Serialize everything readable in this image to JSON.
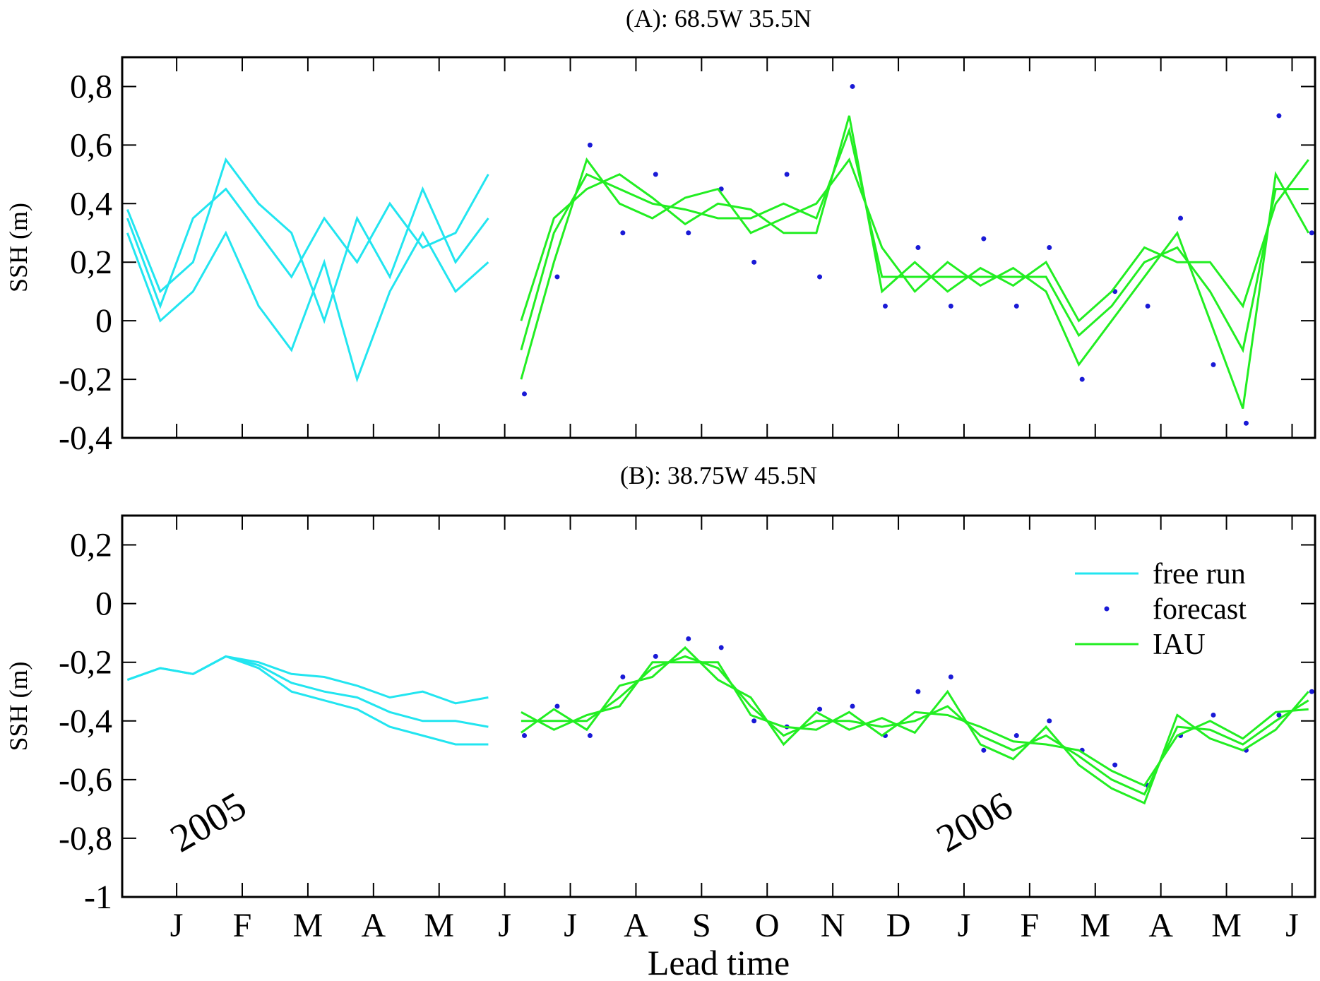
{
  "chart_data": [
    {
      "type": "line",
      "title": "(A): 68.5W 35.5N",
      "ylabel": "SSH (m)",
      "xlim": [
        0.17,
        18.35
      ],
      "ylim": [
        -0.4,
        0.9
      ],
      "yticks": [
        {
          "value": -0.4,
          "label": "-0,4"
        },
        {
          "value": -0.2,
          "label": "-0,2"
        },
        0,
        {
          "value": 0.2,
          "label": "0,2"
        },
        {
          "value": 0.4,
          "label": "0,4"
        },
        {
          "value": 0.6,
          "label": "0,6"
        },
        {
          "value": 0.8,
          "label": "0,8"
        }
      ],
      "series": [
        {
          "style": "line",
          "color": "#22e5f0",
          "x": [
            0.25,
            0.75,
            1.25,
            1.75,
            2.25,
            2.75,
            3.25,
            3.75,
            4.25,
            4.75,
            5.25,
            5.75
          ],
          "values": [
            [
              0.35,
              0.05,
              0.35,
              0.45,
              0.3,
              0.15,
              0.35,
              0.2,
              0.4,
              0.25,
              0.3,
              0.5
            ],
            [
              0.3,
              0.0,
              0.1,
              0.3,
              0.05,
              -0.1,
              0.2,
              -0.2,
              0.1,
              0.3,
              0.1,
              0.2
            ],
            [
              0.38,
              0.1,
              0.2,
              0.55,
              0.4,
              0.3,
              0.0,
              0.35,
              0.15,
              0.45,
              0.2,
              0.35
            ]
          ]
        },
        {
          "style": "dots",
          "color": "#1a1ad6",
          "x": [
            6.3,
            6.8,
            7.3,
            7.8,
            8.3,
            8.8,
            9.3,
            9.8,
            10.3,
            10.8,
            11.3,
            11.8,
            12.3,
            12.8,
            13.3,
            13.8,
            14.3,
            14.8,
            15.3,
            15.8,
            16.3,
            16.8,
            17.3,
            17.8,
            18.3
          ],
          "values": [
            [
              -0.25,
              0.15,
              0.6,
              0.3,
              0.5,
              0.3,
              0.45,
              0.2,
              0.5,
              0.15,
              0.8,
              0.05,
              0.25,
              0.05,
              0.28,
              0.05,
              0.25,
              -0.2,
              0.1,
              0.05,
              0.35,
              -0.15,
              -0.35,
              0.7,
              0.3
            ]
          ]
        },
        {
          "style": "line",
          "color": "#22ee22",
          "x": [
            6.25,
            6.75,
            7.25,
            7.75,
            8.25,
            8.75,
            9.25,
            9.75,
            10.25,
            10.75,
            11.25,
            11.75,
            12.25,
            12.75,
            13.25,
            13.75,
            14.25,
            14.75,
            15.25,
            15.75,
            16.25,
            16.75,
            17.25,
            17.75,
            18.25
          ],
          "values": [
            [
              -0.1,
              0.3,
              0.5,
              0.45,
              0.4,
              0.38,
              0.35,
              0.35,
              0.4,
              0.35,
              0.65,
              0.15,
              0.15,
              0.15,
              0.15,
              0.15,
              0.15,
              -0.05,
              0.05,
              0.2,
              0.25,
              0.1,
              -0.1,
              0.45,
              0.45
            ],
            [
              -0.2,
              0.2,
              0.55,
              0.4,
              0.35,
              0.42,
              0.45,
              0.3,
              0.35,
              0.4,
              0.55,
              0.25,
              0.1,
              0.2,
              0.12,
              0.18,
              0.1,
              -0.15,
              0.0,
              0.15,
              0.3,
              0.0,
              -0.3,
              0.5,
              0.3
            ],
            [
              0.0,
              0.35,
              0.45,
              0.5,
              0.42,
              0.33,
              0.4,
              0.38,
              0.3,
              0.3,
              0.7,
              0.1,
              0.2,
              0.1,
              0.18,
              0.12,
              0.2,
              0.0,
              0.1,
              0.25,
              0.2,
              0.2,
              0.05,
              0.4,
              0.55
            ]
          ]
        }
      ]
    },
    {
      "type": "line",
      "title": "(B): 38.75W 45.5N",
      "ylabel": "SSH (m)",
      "xlabel": "Lead time",
      "xlim": [
        0.17,
        18.35
      ],
      "ylim": [
        -1,
        0.3
      ],
      "xticks": [
        {
          "value": 1,
          "label": "J"
        },
        {
          "value": 2,
          "label": "F"
        },
        {
          "value": 3,
          "label": "M"
        },
        {
          "value": 4,
          "label": "A"
        },
        {
          "value": 5,
          "label": "M"
        },
        {
          "value": 6,
          "label": "J"
        },
        {
          "value": 7,
          "label": "J"
        },
        {
          "value": 8,
          "label": "A"
        },
        {
          "value": 9,
          "label": "S"
        },
        {
          "value": 10,
          "label": "O"
        },
        {
          "value": 11,
          "label": "N"
        },
        {
          "value": 12,
          "label": "D"
        },
        {
          "value": 13,
          "label": "J"
        },
        {
          "value": 14,
          "label": "F"
        },
        {
          "value": 15,
          "label": "M"
        },
        {
          "value": 16,
          "label": "A"
        },
        {
          "value": 17,
          "label": "M"
        },
        {
          "value": 18,
          "label": "J"
        }
      ],
      "yticks": [
        -1,
        {
          "value": -0.8,
          "label": "-0,8"
        },
        {
          "value": -0.6,
          "label": "-0,6"
        },
        {
          "value": -0.4,
          "label": "-0,4"
        },
        {
          "value": -0.2,
          "label": "-0,2"
        },
        0,
        {
          "value": 0.2,
          "label": "0,2"
        }
      ],
      "legend": "upper right",
      "annotations": [
        "2005",
        "2006"
      ],
      "series": [
        {
          "name": "free run",
          "style": "line",
          "color": "#22e5f0",
          "x": [
            0.25,
            0.75,
            1.25,
            1.75,
            2.25,
            2.75,
            3.25,
            3.75,
            4.25,
            4.75,
            5.25,
            5.75
          ],
          "values": [
            [
              -0.26,
              -0.22,
              -0.24,
              -0.18,
              -0.2,
              -0.24,
              -0.25,
              -0.28,
              -0.32,
              -0.3,
              -0.34,
              -0.32
            ],
            [
              -0.26,
              -0.22,
              -0.24,
              -0.18,
              -0.22,
              -0.3,
              -0.33,
              -0.36,
              -0.42,
              -0.45,
              -0.48,
              -0.48
            ],
            [
              -0.26,
              -0.22,
              -0.24,
              -0.18,
              -0.21,
              -0.27,
              -0.3,
              -0.32,
              -0.37,
              -0.4,
              -0.4,
              -0.42
            ]
          ]
        },
        {
          "name": "forecast",
          "style": "dots",
          "color": "#1a1ad6",
          "x": [
            6.3,
            6.8,
            7.3,
            7.8,
            8.3,
            8.8,
            9.3,
            9.8,
            10.3,
            10.8,
            11.3,
            11.8,
            12.3,
            12.8,
            13.3,
            13.8,
            14.3,
            14.8,
            15.3,
            15.8,
            16.3,
            16.8,
            17.3,
            17.8,
            18.3
          ],
          "values": [
            [
              -0.45,
              -0.35,
              -0.45,
              -0.25,
              -0.18,
              -0.12,
              -0.15,
              -0.4,
              -0.42,
              -0.36,
              -0.35,
              -0.45,
              -0.3,
              -0.25,
              -0.5,
              -0.45,
              -0.4,
              -0.5,
              -0.55,
              -0.62,
              -0.45,
              -0.38,
              -0.5,
              -0.38,
              -0.3
            ]
          ]
        },
        {
          "name": "IAU",
          "style": "line",
          "color": "#22ee22",
          "x": [
            6.25,
            6.75,
            7.25,
            7.75,
            8.25,
            8.75,
            9.25,
            9.75,
            10.25,
            10.75,
            11.25,
            11.75,
            12.25,
            12.75,
            13.25,
            13.75,
            14.25,
            14.75,
            15.25,
            15.75,
            16.25,
            16.75,
            17.25,
            17.75,
            18.25
          ],
          "values": [
            [
              -0.4,
              -0.4,
              -0.4,
              -0.32,
              -0.22,
              -0.18,
              -0.22,
              -0.35,
              -0.45,
              -0.4,
              -0.4,
              -0.42,
              -0.4,
              -0.35,
              -0.45,
              -0.5,
              -0.45,
              -0.52,
              -0.6,
              -0.65,
              -0.42,
              -0.43,
              -0.48,
              -0.4,
              -0.33
            ],
            [
              -0.44,
              -0.36,
              -0.43,
              -0.28,
              -0.25,
              -0.15,
              -0.26,
              -0.32,
              -0.48,
              -0.37,
              -0.43,
              -0.39,
              -0.44,
              -0.3,
              -0.48,
              -0.53,
              -0.42,
              -0.55,
              -0.63,
              -0.68,
              -0.38,
              -0.46,
              -0.5,
              -0.43,
              -0.3
            ],
            [
              -0.37,
              -0.43,
              -0.38,
              -0.35,
              -0.2,
              -0.2,
              -0.2,
              -0.38,
              -0.42,
              -0.43,
              -0.37,
              -0.45,
              -0.37,
              -0.38,
              -0.42,
              -0.47,
              -0.48,
              -0.5,
              -0.57,
              -0.62,
              -0.45,
              -0.4,
              -0.46,
              -0.37,
              -0.36
            ]
          ]
        }
      ]
    }
  ]
}
